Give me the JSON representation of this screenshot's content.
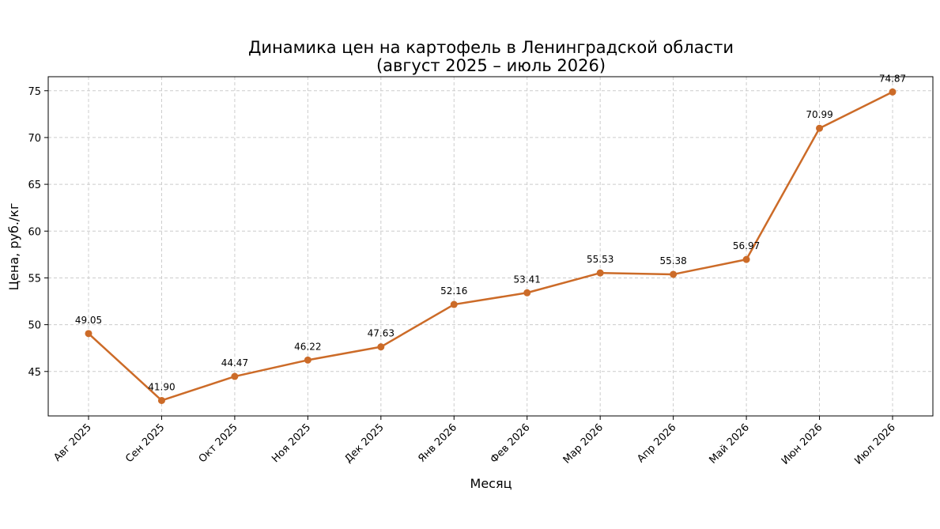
{
  "chart_data": {
    "type": "line",
    "title_line1": "Динамика цен на картофель в Ленинградской области",
    "title_line2": "(август 2025 – июль 2026)",
    "xlabel": "Месяц",
    "ylabel": "Цена, руб./кг",
    "categories": [
      "Авг 2025",
      "Сен 2025",
      "Окт 2025",
      "Ноя 2025",
      "Дек 2025",
      "Янв 2026",
      "Фев 2026",
      "Мар 2026",
      "Апр 2026",
      "Май 2026",
      "Июн 2026",
      "Июл 2026"
    ],
    "values": [
      49.05,
      41.9,
      44.47,
      46.22,
      47.63,
      52.16,
      53.41,
      55.53,
      55.38,
      56.97,
      70.99,
      74.87
    ],
    "value_labels": [
      "49.05",
      "41.90",
      "44.47",
      "46.22",
      "47.63",
      "52.16",
      "53.41",
      "55.53",
      "55.38",
      "56.97",
      "70.99",
      "74.87"
    ],
    "yticks": [
      45,
      50,
      55,
      60,
      65,
      70,
      75
    ],
    "ylim": [
      40.25,
      76.5
    ],
    "grid": true,
    "line_color": "#cc6b28"
  }
}
